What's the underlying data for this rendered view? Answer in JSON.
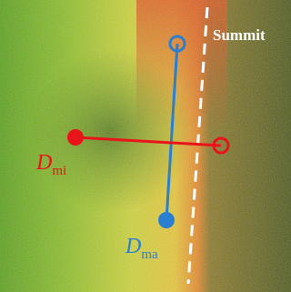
{
  "labels": {
    "summit": "Summit",
    "minor_axis": {
      "symbol": "D",
      "subscript": "mi"
    },
    "major_axis": {
      "symbol": "D",
      "subscript": "ma"
    }
  }
}
